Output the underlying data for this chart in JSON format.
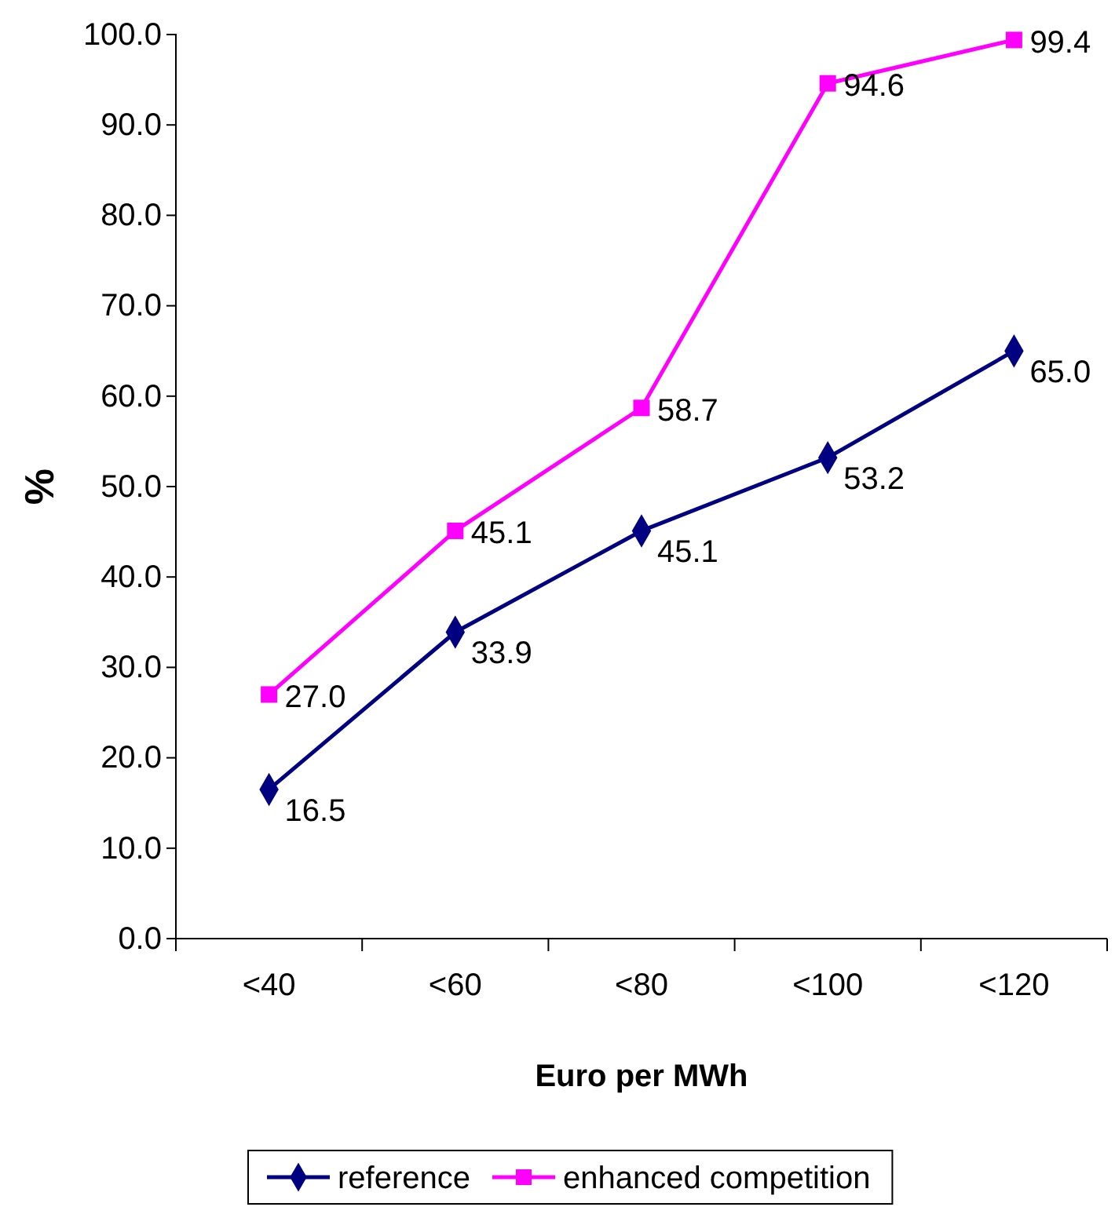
{
  "chart_data": {
    "type": "line",
    "xlabel": "Euro per MWh",
    "ylabel": "%",
    "categories": [
      "<40",
      "<60",
      "<80",
      "<100",
      "<120"
    ],
    "series": [
      {
        "name": "reference",
        "color": "#000080",
        "marker": "diamond",
        "values": [
          16.5,
          33.9,
          45.1,
          53.2,
          65.0
        ],
        "value_labels": [
          "16.5",
          "33.9",
          "45.1",
          "53.2",
          "65.0"
        ]
      },
      {
        "name": "enhanced competition",
        "color": "#ff00ff",
        "marker": "square",
        "values": [
          27.0,
          45.1,
          58.7,
          94.6,
          99.4
        ],
        "value_labels": [
          "27.0",
          "45.1",
          "58.7",
          "94.6",
          "99.4"
        ]
      }
    ],
    "ylim": [
      0,
      100
    ],
    "yticks": [
      {
        "value": 0,
        "label": "0.0"
      },
      {
        "value": 10,
        "label": "10.0"
      },
      {
        "value": 20,
        "label": "20.0"
      },
      {
        "value": 30,
        "label": "30.0"
      },
      {
        "value": 40,
        "label": "40.0"
      },
      {
        "value": 50,
        "label": "50.0"
      },
      {
        "value": 60,
        "label": "60.0"
      },
      {
        "value": 70,
        "label": "70.0"
      },
      {
        "value": 80,
        "label": "80.0"
      },
      {
        "value": 90,
        "label": "90.0"
      },
      {
        "value": 100,
        "label": "100.0"
      }
    ],
    "legend": "bottom",
    "grid": false,
    "line_style": "solid"
  }
}
